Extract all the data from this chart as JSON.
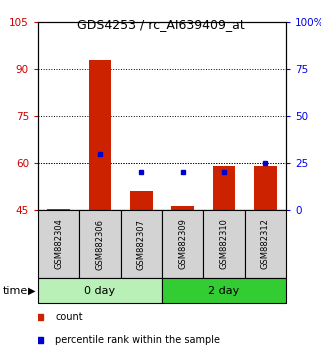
{
  "title": "GDS4253 / rc_AI639409_at",
  "samples": [
    "GSM882304",
    "GSM882306",
    "GSM882307",
    "GSM882309",
    "GSM882310",
    "GSM882312"
  ],
  "count_values": [
    45.2,
    93.0,
    51.0,
    46.2,
    59.0,
    59.0
  ],
  "count_base": 45,
  "percentile_values": [
    null,
    30,
    20,
    20,
    20,
    25
  ],
  "left_ylim": [
    45,
    105
  ],
  "left_yticks": [
    45,
    60,
    75,
    90,
    105
  ],
  "right_ylim": [
    0,
    100
  ],
  "right_yticks": [
    0,
    25,
    50,
    75,
    100
  ],
  "right_yticklabels": [
    "0",
    "25",
    "50",
    "75",
    "100%"
  ],
  "bar_color": "#cc2200",
  "dot_color": "#0000cc",
  "group_labels": [
    "0 day",
    "2 day"
  ],
  "group_color_light": "#b8f0b8",
  "group_color_dark": "#33cc33",
  "time_label": "time",
  "legend_count": "count",
  "legend_pct": "percentile rank within the sample",
  "left_label_color": "#cc0000",
  "right_label_color": "#0000ee",
  "bar_width": 0.55
}
